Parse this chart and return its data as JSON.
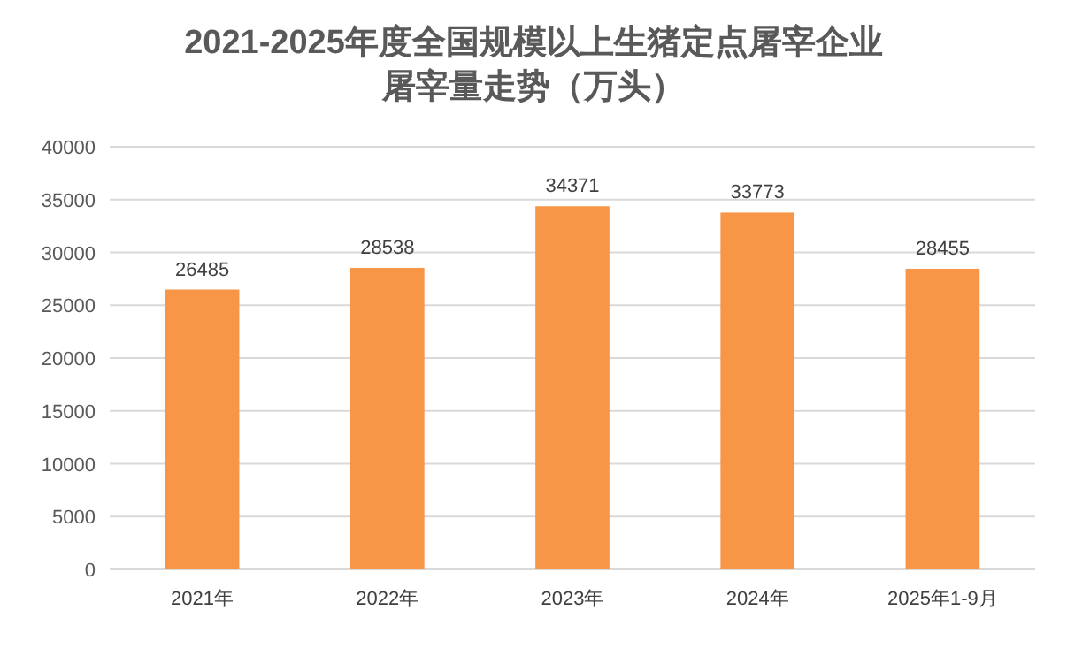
{
  "chart_data": {
    "type": "bar",
    "title": "2021-2025年度全国规模以上生猪定点屠宰企业屠宰量走势（万头）",
    "categories": [
      "2021年",
      "2022年",
      "2023年",
      "2024年",
      "2025年1-9月"
    ],
    "values": [
      26485,
      28538,
      34371,
      33773,
      28455
    ],
    "color": "#f79646",
    "ylim": [
      0,
      40000
    ],
    "yticks": [
      0,
      5000,
      10000,
      15000,
      20000,
      25000,
      30000,
      35000,
      40000
    ],
    "grid": "y",
    "data_labels": true
  }
}
